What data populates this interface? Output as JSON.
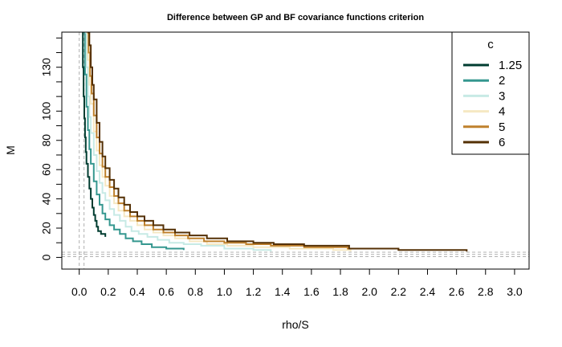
{
  "chart_data": {
    "type": "line",
    "title": "Difference between GP and BF covariance functions criterion",
    "xlabel": "rho/S",
    "ylabel": "M",
    "xlim": [
      -0.12,
      3.1
    ],
    "ylim": [
      -8,
      154
    ],
    "x_ticks": [
      0.0,
      0.2,
      0.4,
      0.6,
      0.8,
      1.0,
      1.2,
      1.4,
      1.6,
      1.8,
      2.0,
      2.2,
      2.4,
      2.6,
      2.8,
      3.0
    ],
    "x_tick_labels": [
      "0.0",
      "0.2",
      "0.4",
      "0.6",
      "0.8",
      "1.0",
      "1.2",
      "1.4",
      "1.6",
      "1.8",
      "2.0",
      "2.2",
      "2.4",
      "2.6",
      "2.8",
      "3.0"
    ],
    "y_ticks": [
      0,
      20,
      40,
      60,
      80,
      100,
      130
    ],
    "y_tick_labels": [
      "0",
      "20",
      "40",
      "60",
      "80",
      "100",
      "130"
    ],
    "y_minor_ticks": [
      10,
      30,
      50,
      70,
      90,
      110,
      120,
      140,
      150
    ],
    "grid": false,
    "reference_lines": {
      "vertical_x": [
        0.0,
        0.033
      ],
      "horizontal_y": [
        0.5,
        2.0,
        3.5
      ]
    },
    "legend": {
      "title": "c",
      "placement": "top-right",
      "entries": [
        "1.25",
        "2",
        "3",
        "4",
        "5",
        "6"
      ]
    },
    "series": [
      {
        "name": "1.25",
        "color": "#003c30",
        "points": [
          [
            0.02,
            154
          ],
          [
            0.025,
            130
          ],
          [
            0.03,
            110
          ],
          [
            0.035,
            95
          ],
          [
            0.04,
            82
          ],
          [
            0.045,
            72
          ],
          [
            0.05,
            64
          ],
          [
            0.06,
            55
          ],
          [
            0.07,
            47
          ],
          [
            0.08,
            40
          ],
          [
            0.09,
            34
          ],
          [
            0.1,
            29
          ],
          [
            0.11,
            25
          ],
          [
            0.12,
            21
          ],
          [
            0.13,
            18
          ],
          [
            0.15,
            16
          ],
          [
            0.18,
            14
          ]
        ]
      },
      {
        "name": "2",
        "color": "#35978f",
        "points": [
          [
            0.03,
            154
          ],
          [
            0.04,
            125
          ],
          [
            0.05,
            103
          ],
          [
            0.06,
            87
          ],
          [
            0.07,
            74
          ],
          [
            0.08,
            64
          ],
          [
            0.1,
            52
          ],
          [
            0.12,
            43
          ],
          [
            0.14,
            36
          ],
          [
            0.16,
            30
          ],
          [
            0.18,
            26
          ],
          [
            0.21,
            22
          ],
          [
            0.24,
            19
          ],
          [
            0.28,
            16
          ],
          [
            0.32,
            13
          ],
          [
            0.37,
            11
          ],
          [
            0.43,
            9
          ],
          [
            0.5,
            7
          ],
          [
            0.6,
            6
          ],
          [
            0.72,
            5
          ]
        ]
      },
      {
        "name": "3",
        "color": "#c7eae5",
        "points": [
          [
            0.04,
            154
          ],
          [
            0.05,
            130
          ],
          [
            0.06,
            110
          ],
          [
            0.07,
            96
          ],
          [
            0.08,
            85
          ],
          [
            0.1,
            70
          ],
          [
            0.12,
            59
          ],
          [
            0.14,
            51
          ],
          [
            0.16,
            44
          ],
          [
            0.18,
            39
          ],
          [
            0.21,
            33
          ],
          [
            0.24,
            29
          ],
          [
            0.28,
            25
          ],
          [
            0.32,
            21
          ],
          [
            0.36,
            18
          ],
          [
            0.41,
            16
          ],
          [
            0.47,
            14
          ],
          [
            0.54,
            12
          ],
          [
            0.62,
            10
          ],
          [
            0.72,
            9
          ],
          [
            0.84,
            8
          ],
          [
            1.0,
            6
          ],
          [
            1.2,
            5
          ],
          [
            1.32,
            4
          ]
        ]
      },
      {
        "name": "4",
        "color": "#f6e8c3",
        "points": [
          [
            0.05,
            154
          ],
          [
            0.06,
            135
          ],
          [
            0.07,
            118
          ],
          [
            0.08,
            105
          ],
          [
            0.1,
            86
          ],
          [
            0.12,
            73
          ],
          [
            0.14,
            63
          ],
          [
            0.16,
            55
          ],
          [
            0.18,
            49
          ],
          [
            0.21,
            42
          ],
          [
            0.24,
            37
          ],
          [
            0.27,
            32
          ],
          [
            0.31,
            28
          ],
          [
            0.35,
            25
          ],
          [
            0.4,
            22
          ],
          [
            0.45,
            19
          ],
          [
            0.51,
            17
          ],
          [
            0.58,
            15
          ],
          [
            0.66,
            13
          ],
          [
            0.76,
            11
          ],
          [
            0.88,
            9
          ],
          [
            1.02,
            8
          ],
          [
            1.2,
            7
          ],
          [
            1.45,
            6
          ],
          [
            1.75,
            5
          ],
          [
            1.87,
            4
          ]
        ]
      },
      {
        "name": "5",
        "color": "#bf812d",
        "points": [
          [
            0.055,
            154
          ],
          [
            0.065,
            140
          ],
          [
            0.075,
            124
          ],
          [
            0.085,
            112
          ],
          [
            0.1,
            97
          ],
          [
            0.12,
            82
          ],
          [
            0.14,
            71
          ],
          [
            0.16,
            62
          ],
          [
            0.18,
            55
          ],
          [
            0.21,
            48
          ],
          [
            0.24,
            42
          ],
          [
            0.27,
            37
          ],
          [
            0.31,
            32
          ],
          [
            0.35,
            28
          ],
          [
            0.4,
            25
          ],
          [
            0.45,
            22
          ],
          [
            0.51,
            19
          ],
          [
            0.58,
            17
          ],
          [
            0.66,
            15
          ],
          [
            0.75,
            13
          ],
          [
            0.86,
            11
          ],
          [
            1.0,
            10
          ],
          [
            1.15,
            9
          ],
          [
            1.32,
            8
          ],
          [
            1.55,
            7
          ],
          [
            1.85,
            6
          ],
          [
            2.2,
            5
          ]
        ]
      },
      {
        "name": "6",
        "color": "#543005",
        "points": [
          [
            0.06,
            154
          ],
          [
            0.07,
            145
          ],
          [
            0.08,
            130
          ],
          [
            0.09,
            118
          ],
          [
            0.1,
            108
          ],
          [
            0.12,
            92
          ],
          [
            0.14,
            79
          ],
          [
            0.16,
            69
          ],
          [
            0.18,
            61
          ],
          [
            0.21,
            53
          ],
          [
            0.24,
            47
          ],
          [
            0.27,
            41
          ],
          [
            0.31,
            36
          ],
          [
            0.35,
            31
          ],
          [
            0.4,
            28
          ],
          [
            0.45,
            25
          ],
          [
            0.51,
            22
          ],
          [
            0.58,
            19
          ],
          [
            0.66,
            17
          ],
          [
            0.76,
            15
          ],
          [
            0.88,
            13
          ],
          [
            1.02,
            11
          ],
          [
            1.2,
            10
          ],
          [
            1.34,
            9
          ],
          [
            1.55,
            8
          ],
          [
            1.86,
            6
          ],
          [
            2.2,
            5
          ],
          [
            2.67,
            4
          ]
        ]
      }
    ]
  }
}
